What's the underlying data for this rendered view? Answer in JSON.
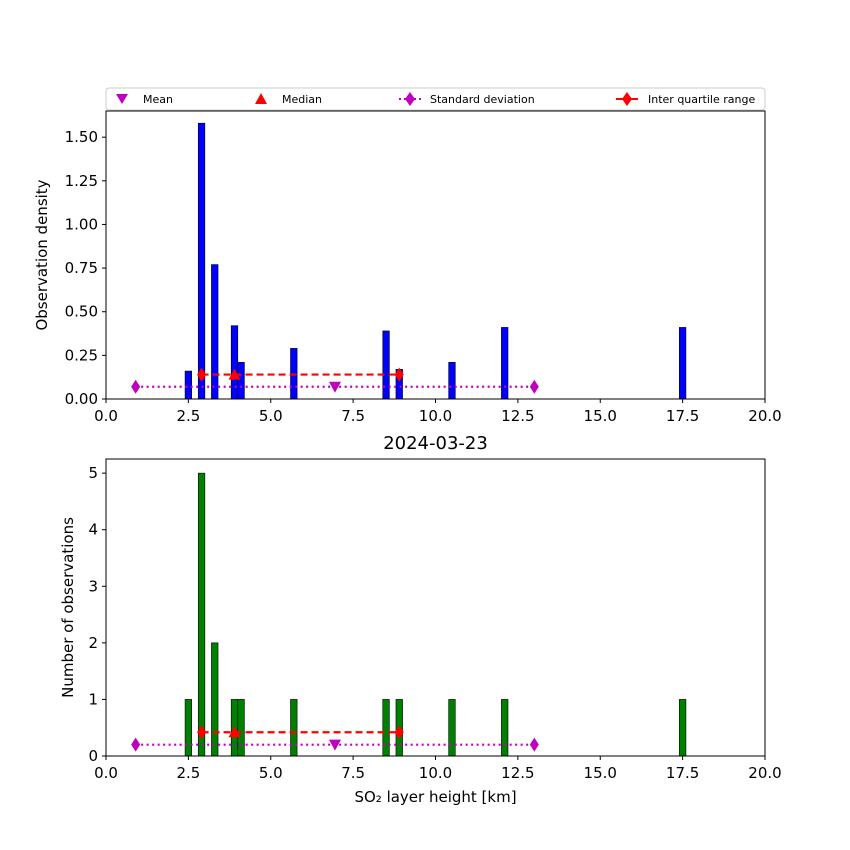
{
  "figure": {
    "date_title": "2024-03-23"
  },
  "legend": {
    "mean": "Mean",
    "median": "Median",
    "std": "Standard deviation",
    "iqr": "Inter quartile range"
  },
  "colors": {
    "density_bar": "#0000ff",
    "count_bar": "#008000",
    "mean_marker": "#bf00bf",
    "median_marker": "#ff0000",
    "std_line": "#bf00bf",
    "iqr_line": "#ff0000"
  },
  "chart_data": [
    {
      "type": "bar",
      "panel": "top",
      "ylabel": "Observation density",
      "xlabel": "",
      "xlim": [
        0,
        20
      ],
      "ylim": [
        0,
        1.65
      ],
      "xticks": [
        "0.0",
        "2.5",
        "5.0",
        "7.5",
        "10.0",
        "12.5",
        "15.0",
        "17.5",
        "20.0"
      ],
      "yticks": [
        "0.00",
        "0.25",
        "0.50",
        "0.75",
        "1.00",
        "1.25",
        "1.50"
      ],
      "bar_width": 0.2,
      "x": [
        2.5,
        2.9,
        3.3,
        3.9,
        4.1,
        5.7,
        8.5,
        8.9,
        10.5,
        12.1,
        17.5
      ],
      "values": [
        0.16,
        1.58,
        0.77,
        0.42,
        0.21,
        0.29,
        0.39,
        0.17,
        0.21,
        0.41,
        0.41
      ],
      "stats": {
        "mean": 6.95,
        "median": 3.9,
        "std_range": [
          0.9,
          13.0
        ],
        "iqr_range": [
          2.9,
          8.9
        ],
        "stat_y": 0.07,
        "quartile_y": 0.14
      }
    },
    {
      "type": "bar",
      "panel": "bottom",
      "ylabel": "Number of observations",
      "xlabel": "SO₂ layer height [km]",
      "xlim": [
        0,
        20
      ],
      "ylim": [
        0,
        5.25
      ],
      "xticks": [
        "0.0",
        "2.5",
        "5.0",
        "7.5",
        "10.0",
        "12.5",
        "15.0",
        "17.5",
        "20.0"
      ],
      "yticks": [
        "0",
        "1",
        "2",
        "3",
        "4",
        "5"
      ],
      "bar_width": 0.2,
      "x": [
        2.5,
        2.9,
        3.3,
        3.9,
        4.1,
        5.7,
        8.5,
        8.9,
        10.5,
        12.1,
        17.5
      ],
      "values": [
        1,
        5,
        2,
        1,
        1,
        1,
        1,
        1,
        1,
        1,
        1
      ],
      "stats": {
        "mean": 6.95,
        "median": 3.9,
        "std_range": [
          0.9,
          13.0
        ],
        "iqr_range": [
          2.9,
          8.9
        ],
        "stat_y": 0.2,
        "quartile_y": 0.42
      }
    }
  ]
}
